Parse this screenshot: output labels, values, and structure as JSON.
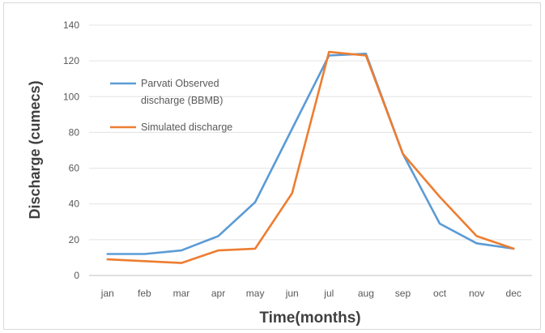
{
  "chart_data": {
    "type": "line",
    "title": "",
    "xlabel": "Time(months)",
    "ylabel": "Discharge (cumecs)",
    "ylim": [
      0,
      140
    ],
    "ystep": 20,
    "categories": [
      "jan",
      "feb",
      "mar",
      "apr",
      "may",
      "jun",
      "jul",
      "aug",
      "sep",
      "oct",
      "nov",
      "dec"
    ],
    "grid": "horizontal",
    "legend_position": "upper-left inside plot",
    "series": [
      {
        "name": "Parvati Observed discharge (BBMB)",
        "legend_lines": [
          "Parvati Observed",
          "discharge (BBMB)"
        ],
        "color": "#5b9bd5",
        "values": [
          12,
          12,
          14,
          22,
          41,
          82,
          123,
          124,
          68,
          29,
          18,
          15
        ]
      },
      {
        "name": "Simulated discharge",
        "legend_lines": [
          "Simulated discharge"
        ],
        "color": "#ed7d31",
        "values": [
          9,
          8,
          7,
          14,
          15,
          46,
          125,
          123,
          68,
          44,
          22,
          15
        ]
      }
    ]
  }
}
